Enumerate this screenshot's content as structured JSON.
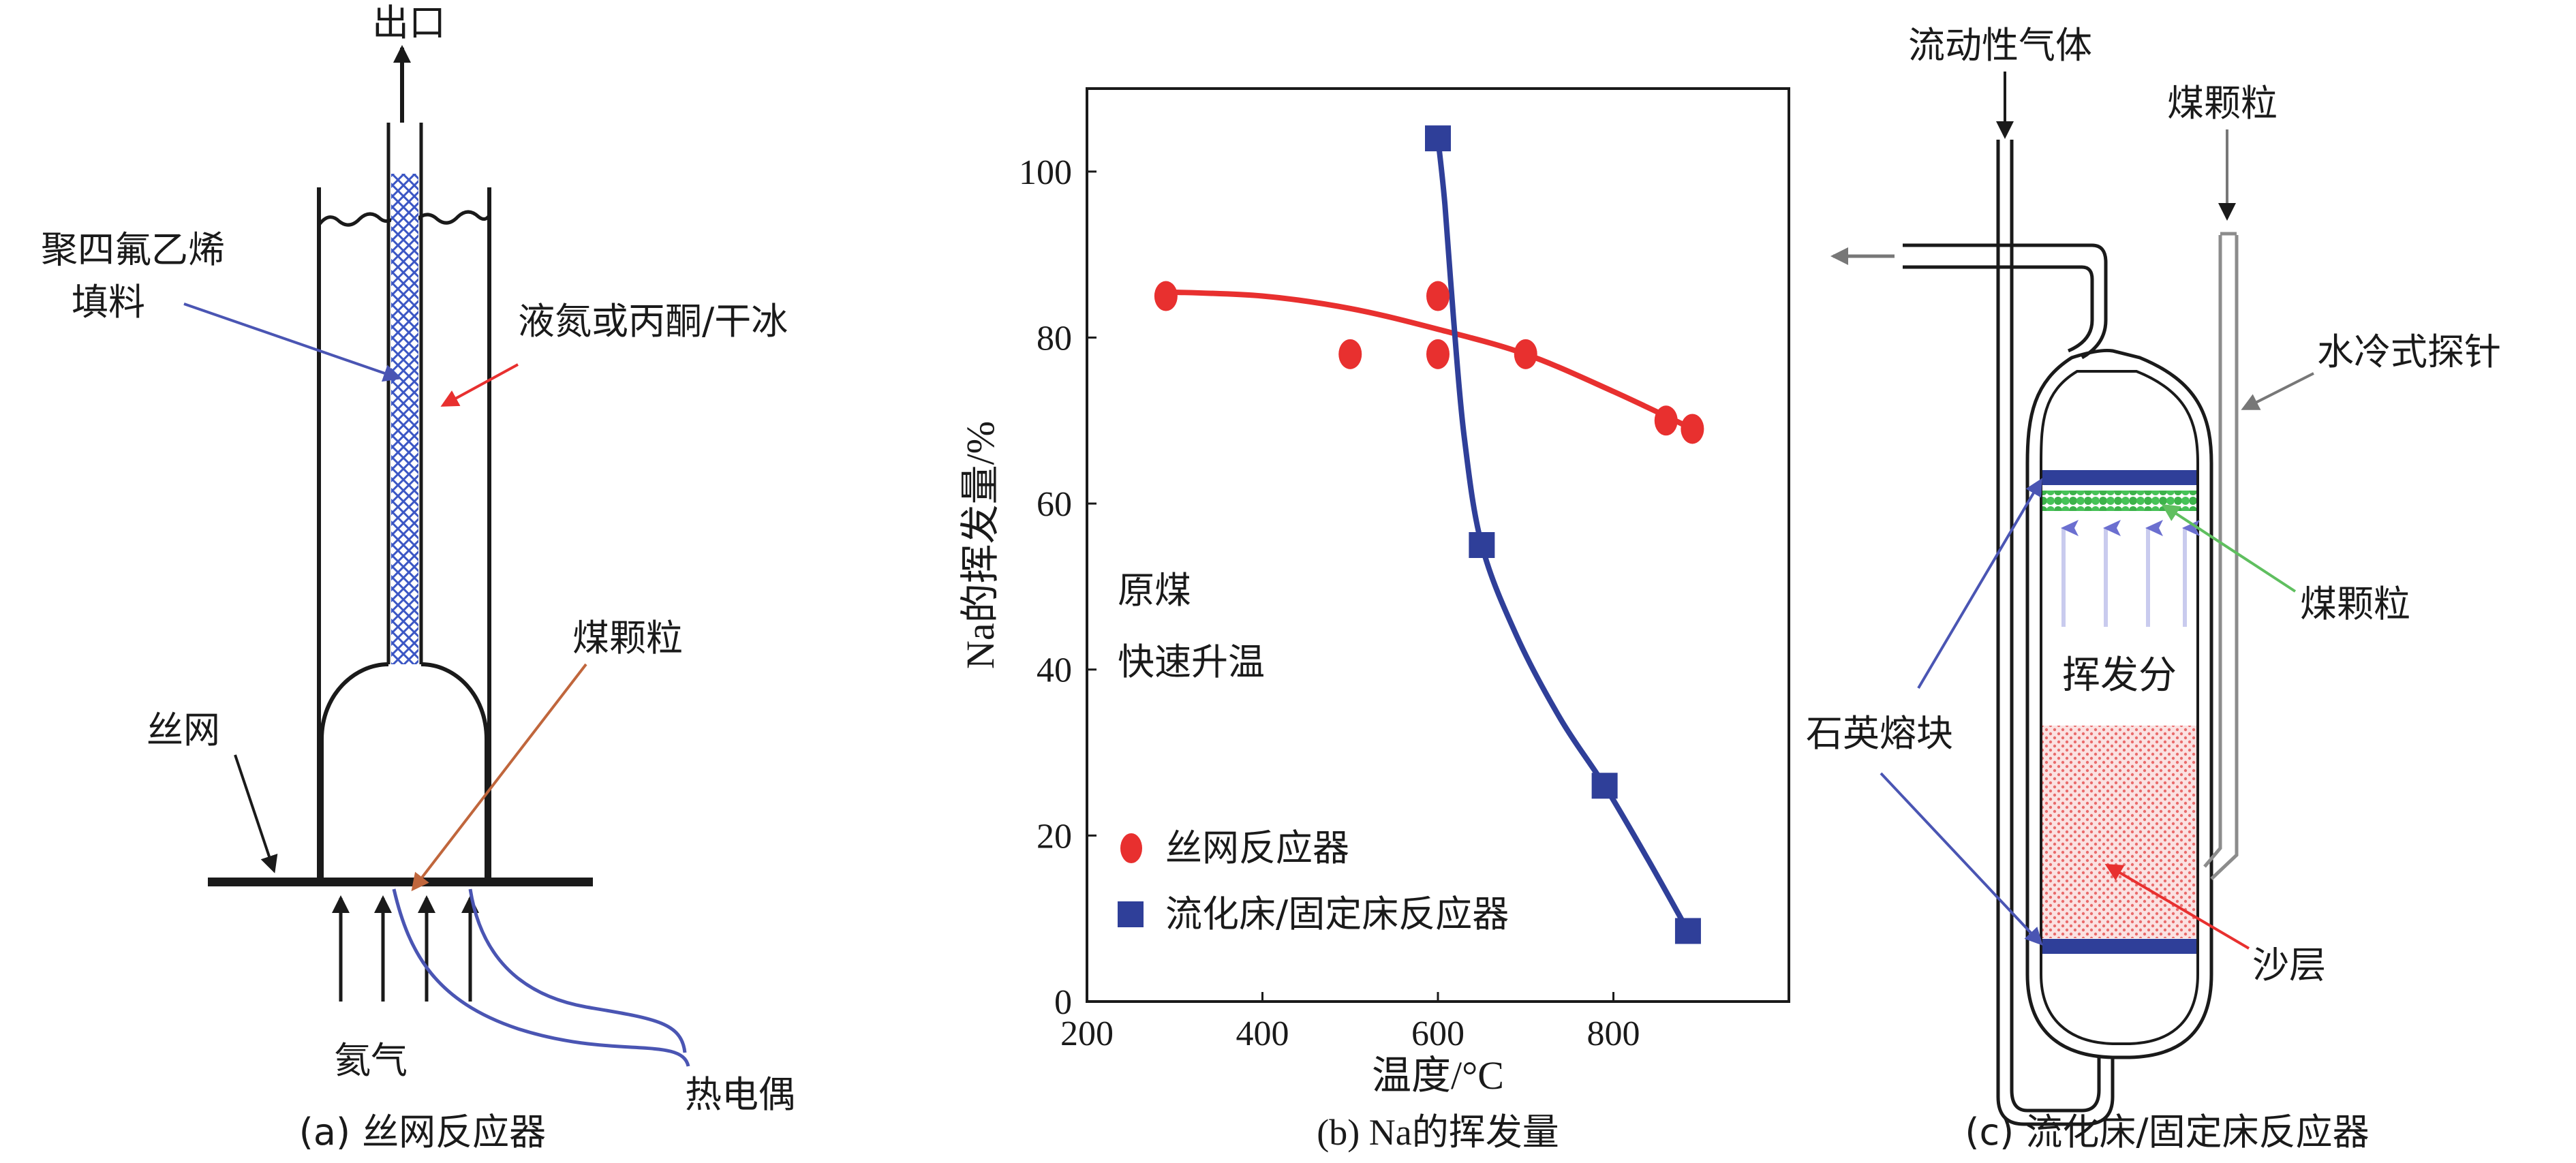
{
  "panel_a": {
    "outlet": "出口",
    "ptfe_line1": "聚四氟乙烯",
    "ptfe_line2": "填料",
    "coolant": "液氮或丙酮/干冰",
    "coal_particle": "煤颗粒",
    "wire_mesh": "丝网",
    "argon": "氦气",
    "thermocouple": "热电偶",
    "caption": "(a) 丝网反应器"
  },
  "panel_b": {
    "caption": "(b) Na的挥发量",
    "annotation_line1": "原煤",
    "annotation_line2": "快速升温",
    "legend_wire_mesh": "丝网反应器",
    "legend_fluidized": "流化床/固定床反应器"
  },
  "panel_c": {
    "fluidizing_gas": "流动性气体",
    "coal_particle_top": "煤颗粒",
    "water_probe": "水冷式探针",
    "coal_particle_side": "煤颗粒",
    "volatiles": "挥发分",
    "quartz_frit": "石英熔块",
    "sand_bed": "沙层",
    "caption": "(c) 流化床/固定床反应器"
  },
  "colors": {
    "red": "#e8302f",
    "blue": "#2f3f99",
    "ink": "#1a1a1a",
    "mesh": "#3b56c4",
    "green": "#3cb34a",
    "sand": "#f2a3a3"
  },
  "chart_data": {
    "type": "scatter",
    "title": "",
    "xlabel": "温度/°C",
    "ylabel": "Na的挥发量/%",
    "xlim": [
      200,
      1000
    ],
    "ylim": [
      0,
      110
    ],
    "xticks": [
      200,
      400,
      600,
      800
    ],
    "yticks": [
      0,
      20,
      40,
      60,
      80,
      100
    ],
    "series": [
      {
        "name": "丝网反应器",
        "marker": "circle",
        "color": "#e8302f",
        "points": [
          [
            290,
            85
          ],
          [
            500,
            78
          ],
          [
            600,
            85
          ],
          [
            600,
            78
          ],
          [
            700,
            78
          ],
          [
            860,
            70
          ],
          [
            890,
            69
          ]
        ],
        "fit": [
          [
            290,
            85.5
          ],
          [
            400,
            85
          ],
          [
            500,
            83.5
          ],
          [
            600,
            81
          ],
          [
            700,
            78
          ],
          [
            800,
            73.5
          ],
          [
            890,
            69
          ]
        ]
      },
      {
        "name": "流化床/固定床反应器",
        "marker": "square",
        "color": "#2f3f99",
        "points": [
          [
            600,
            104
          ],
          [
            650,
            55
          ],
          [
            790,
            26
          ],
          [
            885,
            8.5
          ]
        ],
        "fit": [
          [
            600,
            104
          ],
          [
            608,
            96
          ],
          [
            618,
            82
          ],
          [
            630,
            68
          ],
          [
            650,
            55
          ],
          [
            690,
            44
          ],
          [
            740,
            34
          ],
          [
            790,
            26
          ],
          [
            840,
            17
          ],
          [
            885,
            8.5
          ]
        ]
      }
    ]
  }
}
